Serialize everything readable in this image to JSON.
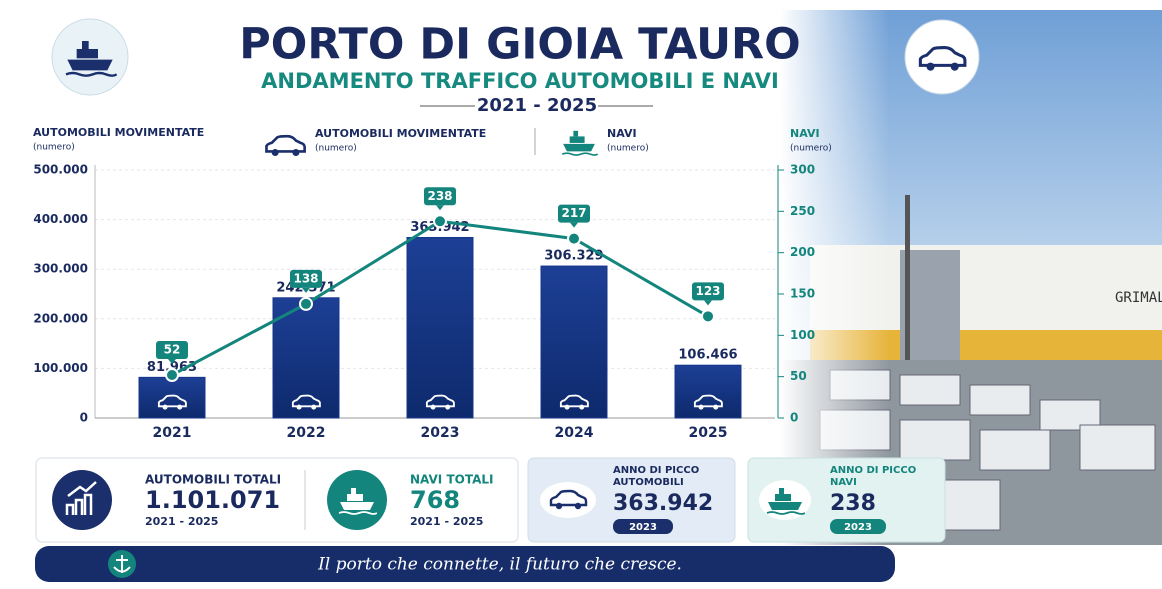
{
  "chart_data": {
    "type": "bar",
    "categories": [
      "2021",
      "2022",
      "2023",
      "2024",
      "2025"
    ],
    "series": [
      {
        "name": "AUTOMOBILI MOVIMENTATE",
        "unit": "(numero)",
        "color": "#16368a",
        "values": [
          81963,
          242371,
          363942,
          306329,
          106466
        ],
        "value_labels": [
          "81.963",
          "242.371",
          "363.942",
          "306.329",
          "106.466"
        ]
      },
      {
        "name": "NAVI",
        "unit": "(numero)",
        "color": "#13857c",
        "type": "line",
        "axis": "y2",
        "values": [
          52,
          138,
          238,
          217,
          123
        ]
      }
    ],
    "ylabel": "AUTOMOBILI MOVIMENTATE",
    "ylabel_unit": "(numero)",
    "y2label": "NAVI",
    "y2label_unit": "(numero)",
    "ylim": [
      0,
      500000
    ],
    "yticks": [
      0,
      {
        "value": 100000,
        "label": "100.000"
      },
      {
        "value": 200000,
        "label": "200.000"
      },
      {
        "value": 300000,
        "label": "300.000"
      },
      {
        "value": 400000,
        "label": "400.000"
      },
      {
        "value": 500000,
        "label": "500.000"
      }
    ],
    "y2lim": [
      0,
      300
    ],
    "y2ticks": [
      0,
      50,
      100,
      150,
      200,
      250,
      300
    ],
    "grid": true
  },
  "header": {
    "title": "PORTO DI GIOIA TAURO",
    "subtitle": "ANDAMENTO TRAFFICO AUTOMOBILI E NAVI",
    "period": "2021 - 2025"
  },
  "cards": [
    {
      "label": "AUTOMOBILI TOTALI",
      "value": "1.101.071",
      "period": "2021 - 2025"
    },
    {
      "label": "NAVI TOTALI",
      "value": "768",
      "period": "2021 - 2025"
    },
    {
      "label": [
        "ANNO DI PICCO",
        "AUTOMOBILI"
      ],
      "value": "363.942",
      "year": "2023"
    },
    {
      "label": [
        "ANNO DI PICCO",
        "NAVI"
      ],
      "value": "238",
      "year": "2023"
    }
  ],
  "footer": "Il porto che connette, il futuro che cresce."
}
